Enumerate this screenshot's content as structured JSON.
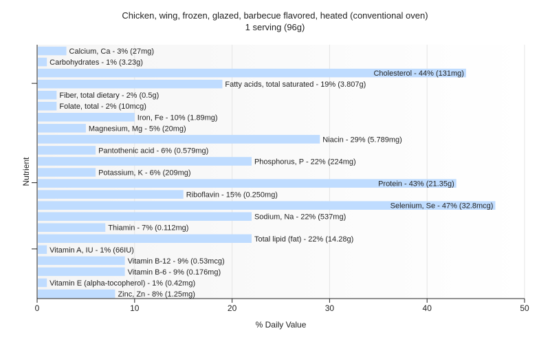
{
  "chart_data": {
    "type": "bar",
    "orientation": "horizontal",
    "title": "Chicken, wing, frozen, glazed, barbecue flavored, heated (conventional oven)",
    "subtitle": "1 serving (96g)",
    "xlabel": "% Daily Value",
    "ylabel": "Nutrient",
    "xlim": [
      0,
      50
    ],
    "xticks": [
      0,
      10,
      20,
      30,
      40,
      50
    ],
    "grid": true,
    "bar_color": "#bfdcff",
    "plot_background": [
      "#f5f5f5",
      "#ffffff"
    ],
    "categories": [
      "Calcium, Ca",
      "Carbohydrates",
      "Cholesterol",
      "Fatty acids, total saturated",
      "Fiber, total dietary",
      "Folate, total",
      "Iron, Fe",
      "Magnesium, Mg",
      "Niacin",
      "Pantothenic acid",
      "Phosphorus, P",
      "Potassium, K",
      "Protein",
      "Riboflavin",
      "Selenium, Se",
      "Sodium, Na",
      "Thiamin",
      "Total lipid (fat)",
      "Vitamin A, IU",
      "Vitamin B-12",
      "Vitamin B-6",
      "Vitamin E (alpha-tocopherol)",
      "Zinc, Zn"
    ],
    "values": [
      3,
      1,
      44,
      19,
      2,
      2,
      10,
      5,
      29,
      6,
      22,
      6,
      43,
      15,
      47,
      22,
      7,
      22,
      1,
      9,
      9,
      1,
      8
    ],
    "labels": [
      "Calcium, Ca - 3% (27mg)",
      "Carbohydrates - 1% (3.23g)",
      "Cholesterol - 44% (131mg)",
      "Fatty acids, total saturated - 19% (3.807g)",
      "Fiber, total dietary - 2% (0.5g)",
      "Folate, total - 2% (10mcg)",
      "Iron, Fe - 10% (1.89mg)",
      "Magnesium, Mg - 5% (20mg)",
      "Niacin - 29% (5.789mg)",
      "Pantothenic acid - 6% (0.579mg)",
      "Phosphorus, P - 22% (224mg)",
      "Potassium, K - 6% (209mg)",
      "Protein - 43% (21.35g)",
      "Riboflavin - 15% (0.250mg)",
      "Selenium, Se - 47% (32.8mcg)",
      "Sodium, Na - 22% (537mg)",
      "Thiamin - 7% (0.112mg)",
      "Total lipid (fat) - 22% (14.28g)",
      "Vitamin A, IU - 1% (66IU)",
      "Vitamin B-12 - 9% (0.53mcg)",
      "Vitamin B-6 - 9% (0.176mg)",
      "Vitamin E (alpha-tocopherol) - 1% (0.42mg)",
      "Zinc, Zn - 8% (1.25mg)"
    ]
  }
}
